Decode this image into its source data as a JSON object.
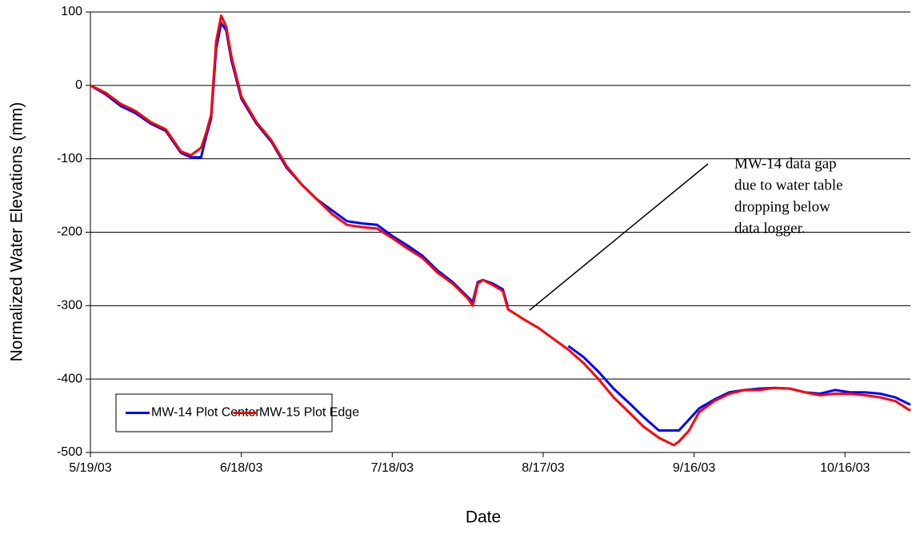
{
  "chart_data": {
    "type": "line",
    "y_label": "Normalized Water Elevations (mm)",
    "x_label": "Date",
    "x": [
      "2003-05-19",
      "2003-05-22",
      "2003-05-25",
      "2003-05-28",
      "2003-05-31",
      "2003-06-03",
      "2003-06-06",
      "2003-06-08",
      "2003-06-10",
      "2003-06-11",
      "2003-06-12",
      "2003-06-13",
      "2003-06-14",
      "2003-06-15",
      "2003-06-16",
      "2003-06-18",
      "2003-06-21",
      "2003-06-24",
      "2003-06-27",
      "2003-06-30",
      "2003-07-03",
      "2003-07-06",
      "2003-07-09",
      "2003-07-12",
      "2003-07-15",
      "2003-07-18",
      "2003-07-21",
      "2003-07-24",
      "2003-07-27",
      "2003-07-30",
      "2003-08-02",
      "2003-08-03",
      "2003-08-04",
      "2003-08-05",
      "2003-08-07",
      "2003-08-09",
      "2003-08-10",
      "2003-08-13",
      "2003-08-16",
      "2003-08-19",
      "2003-08-22",
      "2003-08-25",
      "2003-08-28",
      "2003-08-31",
      "2003-09-03",
      "2003-09-06",
      "2003-09-09",
      "2003-09-12",
      "2003-09-13",
      "2003-09-15",
      "2003-09-17",
      "2003-09-20",
      "2003-09-23",
      "2003-09-26",
      "2003-09-29",
      "2003-10-02",
      "2003-10-05",
      "2003-10-08",
      "2003-10-11",
      "2003-10-14",
      "2003-10-17",
      "2003-10-20",
      "2003-10-23",
      "2003-10-26",
      "2003-10-29"
    ],
    "series": [
      {
        "name": "MW-14 Plot Center",
        "color": "#0000ff",
        "values": [
          0,
          -12,
          -28,
          -38,
          -52,
          -62,
          -92,
          -98,
          -98,
          -70,
          -45,
          50,
          85,
          75,
          35,
          -18,
          -52,
          -77,
          -112,
          -135,
          -155,
          -170,
          -185,
          -188,
          -190,
          -205,
          -218,
          -232,
          -252,
          -268,
          -288,
          -295,
          -268,
          -265,
          -270,
          -278,
          -302,
          null,
          null,
          null,
          -355,
          -370,
          -390,
          -413,
          -432,
          -452,
          -470,
          -470,
          -470,
          -455,
          -440,
          -428,
          -418,
          -415,
          -413,
          -412,
          -413,
          -418,
          -420,
          -415,
          -418,
          -418,
          -420,
          -425,
          -435
        ]
      },
      {
        "name": "MW-15 Plot Edge",
        "color": "#ff0000",
        "values": [
          0,
          -10,
          -25,
          -35,
          -50,
          -60,
          -90,
          -95,
          -85,
          -65,
          -40,
          60,
          95,
          80,
          40,
          -15,
          -50,
          -75,
          -110,
          -135,
          -155,
          -175,
          -190,
          -193,
          -195,
          -208,
          -222,
          -235,
          -255,
          -270,
          -290,
          -300,
          -270,
          -265,
          -272,
          -280,
          -305,
          -318,
          -330,
          -345,
          -360,
          -378,
          -400,
          -425,
          -445,
          -465,
          -480,
          -490,
          -485,
          -470,
          -445,
          -430,
          -420,
          -415,
          -415,
          -412,
          -413,
          -418,
          -422,
          -420,
          -420,
          -422,
          -425,
          -430,
          -443
        ]
      }
    ],
    "xlim": [
      "2003-05-19",
      "2003-10-29"
    ],
    "xticks": [
      {
        "value": "2003-05-19",
        "label": "5/19/03"
      },
      {
        "value": "2003-06-18",
        "label": "6/18/03"
      },
      {
        "value": "2003-07-18",
        "label": "7/18/03"
      },
      {
        "value": "2003-08-17",
        "label": "8/17/03"
      },
      {
        "value": "2003-09-16",
        "label": "9/16/03"
      },
      {
        "value": "2003-10-16",
        "label": "10/16/03"
      }
    ],
    "ylim": [
      -500,
      100
    ],
    "yticks": [
      -500,
      -400,
      -300,
      -200,
      -100,
      0,
      100
    ],
    "grid": true,
    "legend": "lower left",
    "annotation": [
      "MW-14 data gap",
      "due to water table",
      "dropping below",
      "data logger."
    ]
  }
}
